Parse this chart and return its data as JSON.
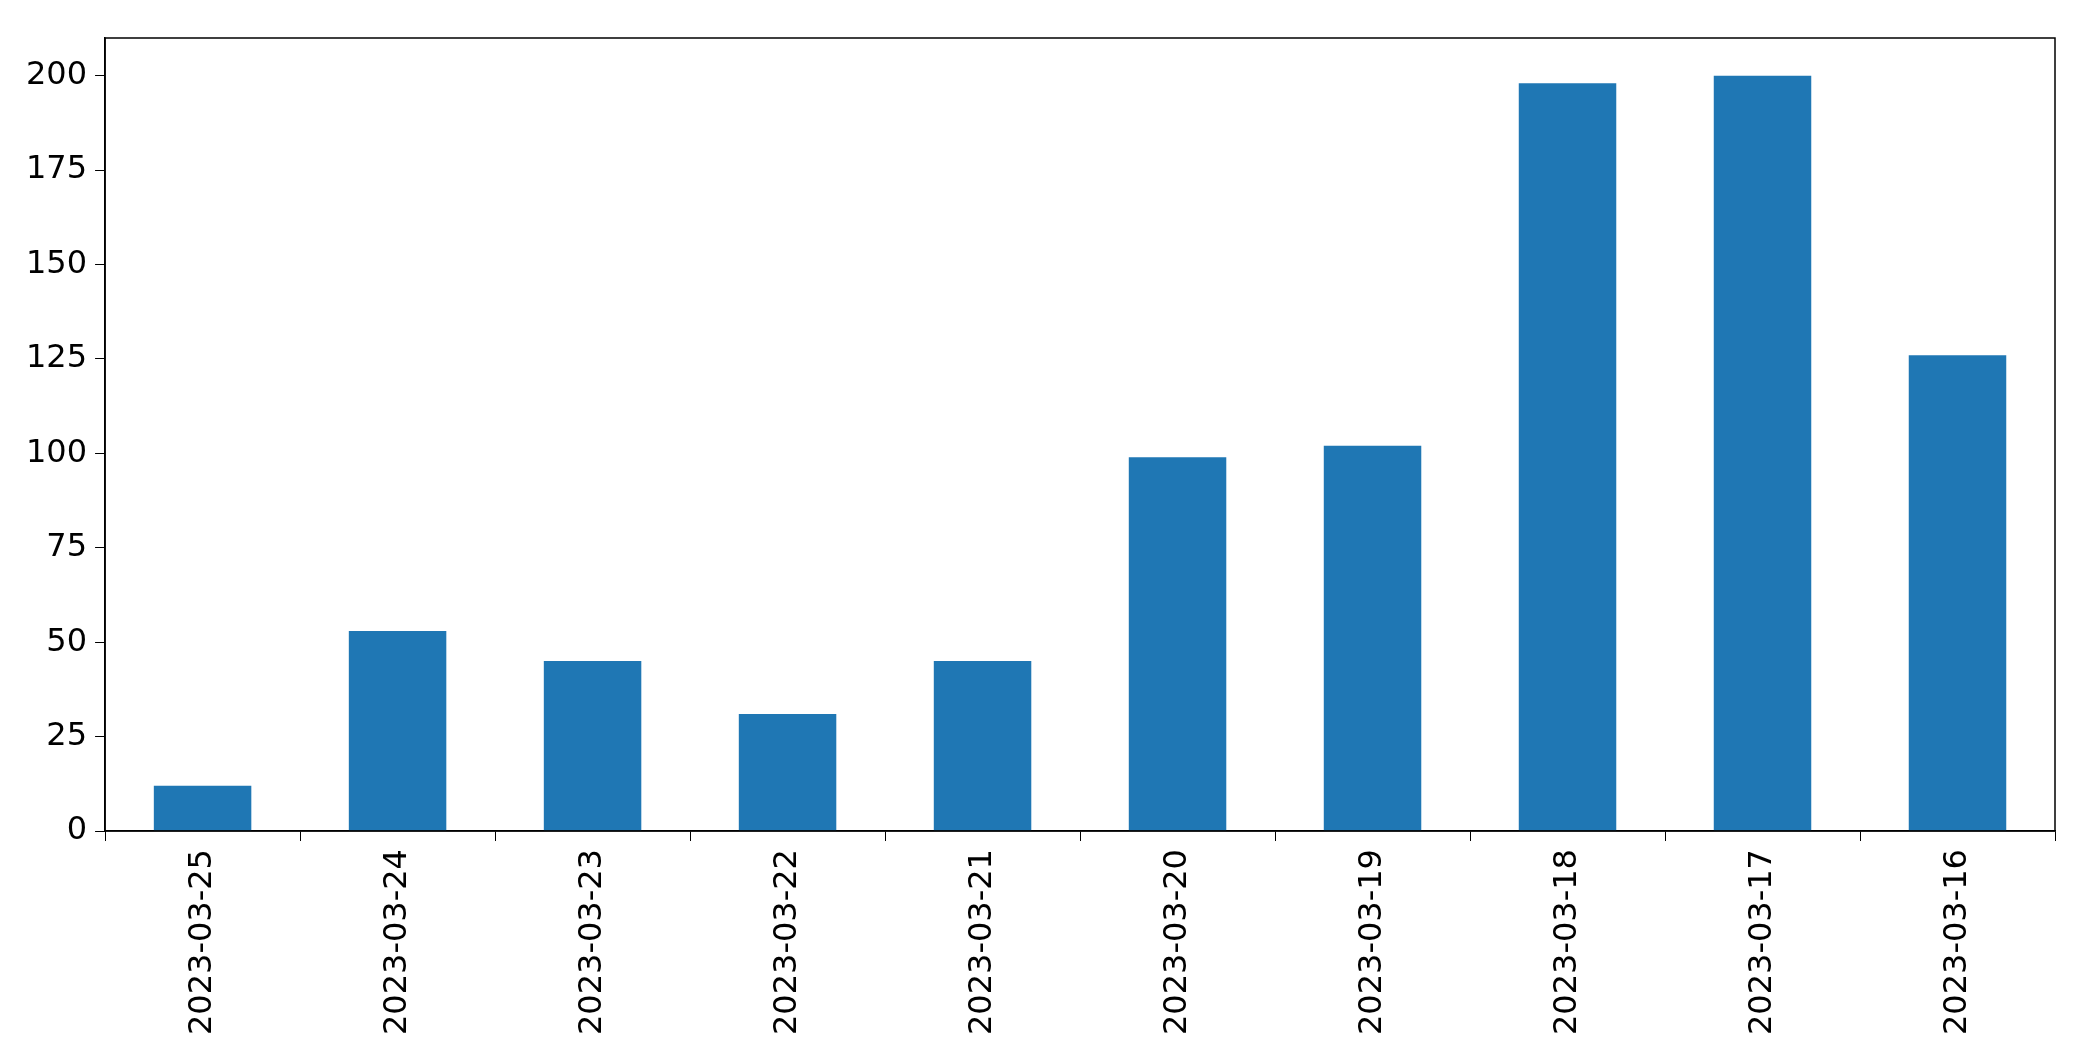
{
  "chart_data": {
    "type": "bar",
    "categories": [
      "2023-03-25",
      "2023-03-24",
      "2023-03-23",
      "2023-03-22",
      "2023-03-21",
      "2023-03-20",
      "2023-03-19",
      "2023-03-18",
      "2023-03-17",
      "2023-03-16"
    ],
    "values": [
      12,
      53,
      45,
      31,
      45,
      99,
      102,
      198,
      200,
      126
    ],
    "color": "#1f77b4",
    "ylim": [
      0,
      210
    ],
    "yticks": [
      0,
      25,
      50,
      75,
      100,
      125,
      150,
      175,
      200
    ],
    "grid": false,
    "legend": false
  }
}
